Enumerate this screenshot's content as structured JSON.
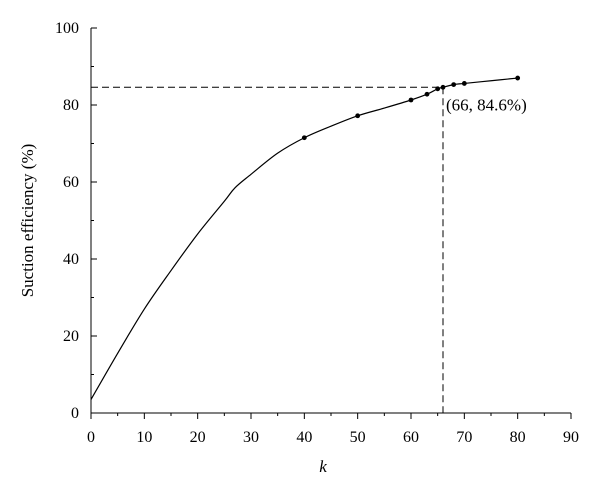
{
  "chart_data": {
    "type": "line",
    "xlabel": "k",
    "ylabel": "Suction efficiency (%)",
    "xlim": [
      0,
      90
    ],
    "ylim": [
      0,
      100
    ],
    "x_ticks": [
      0,
      10,
      20,
      30,
      40,
      50,
      60,
      70,
      80,
      90
    ],
    "y_ticks": [
      0,
      20,
      40,
      60,
      80,
      100
    ],
    "grid": false,
    "legend": "none",
    "series": [
      {
        "x": [
          0,
          5,
          10,
          15,
          20,
          25,
          27,
          30,
          35,
          40,
          45,
          50,
          55,
          60,
          63,
          65,
          66,
          68,
          70,
          75,
          80
        ],
        "y": [
          3.5,
          15.5,
          27,
          37,
          46.5,
          55,
          58.5,
          62,
          67.5,
          71.5,
          74.5,
          77.2,
          79.2,
          81.3,
          82.8,
          84.2,
          84.6,
          85.3,
          85.6,
          86.3,
          87
        ]
      }
    ],
    "markers": {
      "x": [
        40,
        50,
        60,
        63,
        65,
        66,
        68,
        70,
        80
      ],
      "y": [
        71.5,
        77.2,
        81.3,
        82.8,
        84.2,
        84.6,
        85.3,
        85.6,
        87
      ]
    },
    "reference_point": {
      "x": 66,
      "y": 84.6,
      "label": "(66, 84.6%)"
    }
  }
}
